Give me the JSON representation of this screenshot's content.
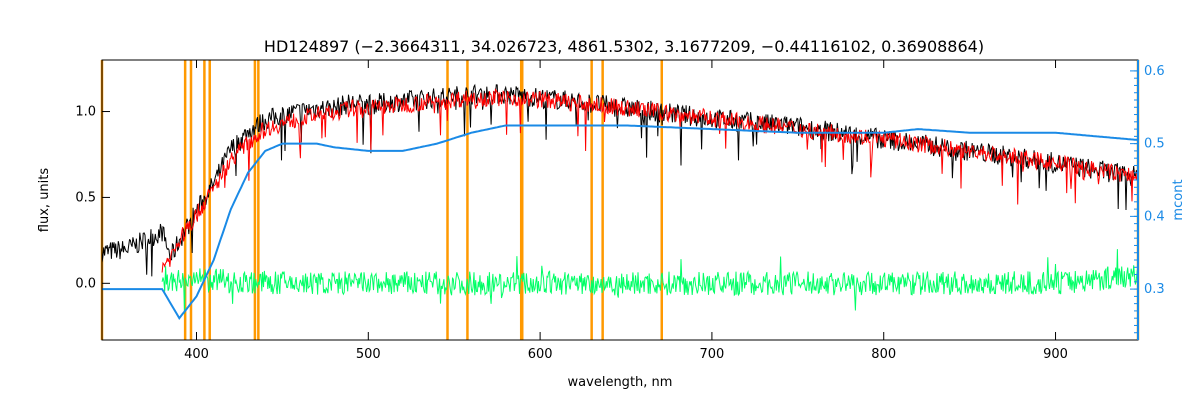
{
  "chart_data": {
    "type": "line",
    "title": "HD124897    (−2.3664311, 34.026723, 4861.5302, 3.1677209, −0.44116102, 0.36908864)",
    "xlabel": "wavelength, nm",
    "ylabel": "flux, units",
    "ylabel_right": "mcont",
    "xlim": [
      345,
      948
    ],
    "ylim": [
      -0.33,
      1.3
    ],
    "ylim_right": [
      0.23,
      0.615
    ],
    "x_ticks": [
      "400",
      "500",
      "600",
      "700",
      "800",
      "900"
    ],
    "y_ticks": [
      "0.0",
      "0.5",
      "1.0"
    ],
    "y_right_ticks": [
      "0.3",
      "0.4",
      "0.5",
      "0.6"
    ],
    "grid": false,
    "colors": {
      "observed": "#000000",
      "model": "#ff0000",
      "residual": "#00ff66",
      "continuum": "#1a8ae6",
      "line_markers": "#ff9900",
      "right_axis": "#1a8ae6"
    },
    "series": [
      {
        "key": "observed",
        "x": [
          345,
          360,
          370,
          380,
          385,
          390,
          400,
          410,
          420,
          430,
          440,
          450,
          460,
          470,
          480,
          490,
          500,
          520,
          540,
          560,
          580,
          600,
          620,
          650,
          700,
          750,
          800,
          850,
          900,
          948
        ],
        "y": [
          0.18,
          0.2,
          0.25,
          0.3,
          0.15,
          0.25,
          0.42,
          0.58,
          0.78,
          0.88,
          0.95,
          0.98,
          1.0,
          1.02,
          1.02,
          1.05,
          1.04,
          1.06,
          1.08,
          1.1,
          1.1,
          1.08,
          1.06,
          1.02,
          0.96,
          0.91,
          0.84,
          0.77,
          0.7,
          0.62
        ]
      },
      {
        "key": "model",
        "x": [
          380,
          385,
          390,
          400,
          410,
          420,
          430,
          440,
          450,
          460,
          470,
          480,
          490,
          500,
          520,
          540,
          560,
          580,
          600,
          620,
          650,
          700,
          750,
          800,
          850,
          900,
          948
        ],
        "y": [
          0.1,
          0.15,
          0.25,
          0.4,
          0.55,
          0.72,
          0.82,
          0.9,
          0.93,
          0.96,
          0.98,
          0.99,
          1.02,
          1.02,
          1.04,
          1.06,
          1.08,
          1.08,
          1.07,
          1.05,
          1.02,
          0.96,
          0.9,
          0.84,
          0.77,
          0.7,
          0.62
        ]
      },
      {
        "key": "residual",
        "x": [
          380,
          400,
          450,
          500,
          550,
          600,
          650,
          700,
          750,
          800,
          850,
          900,
          948
        ],
        "y": [
          0.0,
          0.02,
          0.0,
          0.0,
          0.0,
          0.0,
          0.0,
          0.0,
          0.0,
          0.0,
          0.0,
          0.0,
          0.05
        ]
      },
      {
        "key": "continuum",
        "axis": "right",
        "x": [
          345,
          370,
          380,
          390,
          400,
          410,
          420,
          430,
          440,
          450,
          460,
          470,
          480,
          500,
          520,
          540,
          560,
          580,
          600,
          620,
          650,
          700,
          750,
          800,
          820,
          850,
          900,
          948
        ],
        "y": [
          0.3,
          0.3,
          0.3,
          0.26,
          0.29,
          0.34,
          0.41,
          0.46,
          0.49,
          0.5,
          0.5,
          0.5,
          0.495,
          0.49,
          0.49,
          0.5,
          0.515,
          0.525,
          0.525,
          0.525,
          0.525,
          0.52,
          0.515,
          0.515,
          0.52,
          0.515,
          0.515,
          0.505
        ]
      }
    ],
    "vertical_lines": [
      345,
      393.4,
      396.8,
      404.6,
      407.7,
      434.0,
      436.0,
      546.1,
      557.7,
      589.0,
      589.6,
      630.0,
      636.4,
      670.8,
      948
    ]
  }
}
